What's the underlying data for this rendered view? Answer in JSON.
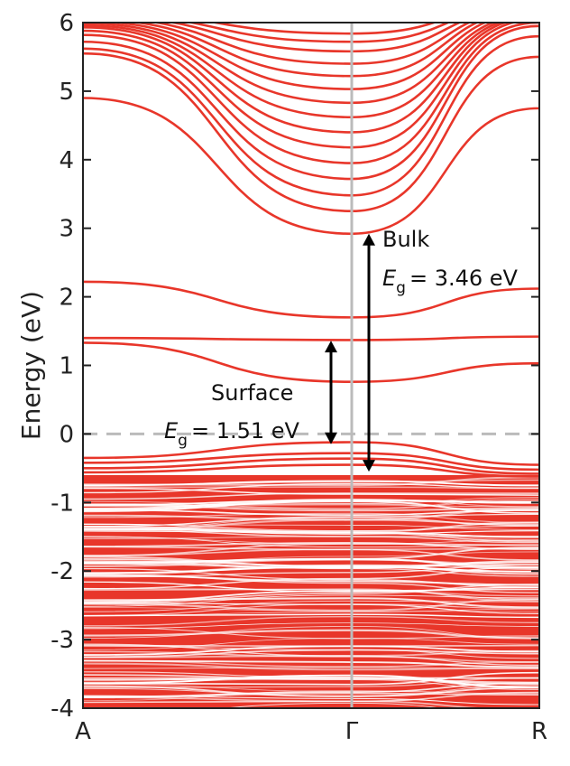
{
  "chart_data": {
    "type": "line",
    "ylabel": "Energy (eV)",
    "ylim": [
      -4,
      6
    ],
    "yticks": [
      "-4",
      "-3",
      "-2",
      "-1",
      "0",
      "1",
      "2",
      "3",
      "4",
      "5",
      "6"
    ],
    "xticks": [
      "A",
      "Γ",
      "R"
    ],
    "fermi_level": 0,
    "grid": false,
    "colors": {
      "bands": "#e8362a",
      "gamma_line": "#bbbbbb",
      "fermi_line": "#bbbbbb",
      "arrows": "#000000"
    },
    "conduction_bands": {
      "gamma_energies": [
        2.92,
        3.25,
        3.48,
        3.72,
        3.95,
        4.18,
        4.4,
        4.62,
        4.83,
        5.03,
        5.22,
        5.4,
        5.58,
        5.72,
        5.84
      ],
      "a_energies": [
        4.9,
        5.55,
        5.62,
        5.72,
        5.82,
        5.88,
        5.93,
        5.96,
        5.99,
        6.02,
        6.05,
        6.08,
        6.1,
        6.12,
        6.15
      ],
      "r_energies": [
        4.75,
        5.5,
        5.8,
        5.95,
        6.0,
        6.05,
        6.08,
        6.1,
        6.12,
        6.15,
        6.18,
        6.2,
        6.22,
        6.25,
        6.28
      ]
    },
    "gap_bands": [
      {
        "a": 2.22,
        "gamma": 1.7,
        "r": 2.12
      },
      {
        "a": 1.4,
        "gamma": 1.37,
        "r": 1.42
      },
      {
        "a": 1.33,
        "gamma": 0.76,
        "r": 1.03
      }
    ],
    "valence_top_bands": [
      {
        "a": -0.35,
        "gamma": -0.12,
        "r": -0.45
      },
      {
        "a": -0.42,
        "gamma": -0.28,
        "r": -0.52
      },
      {
        "a": -0.5,
        "gamma": -0.36,
        "r": -0.58
      },
      {
        "a": -0.56,
        "gamma": -0.45,
        "r": -0.62
      }
    ],
    "valence_continuum": {
      "top": -0.6,
      "bottom": -4.0
    },
    "annotations": {
      "bulk_label": "Bulk",
      "bulk_gap_symbol": "E",
      "bulk_gap_subscript": "g",
      "bulk_gap_value": "= 3.46 eV",
      "bulk_arrow": {
        "from": -0.55,
        "to": 2.92
      },
      "surface_label": "Surface",
      "surface_gap_symbol": "E",
      "surface_gap_subscript": "g",
      "surface_gap_value": "= 1.51 eV",
      "surface_arrow": {
        "from": -0.15,
        "to": 1.36
      }
    }
  }
}
